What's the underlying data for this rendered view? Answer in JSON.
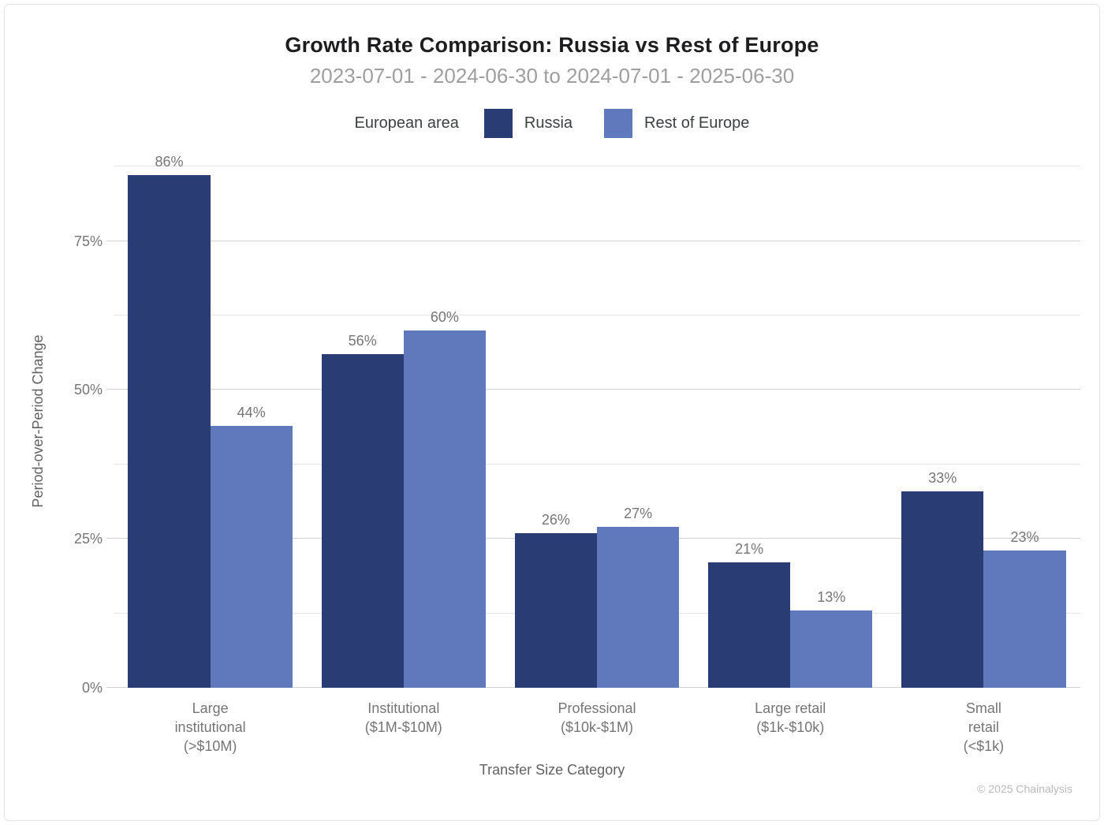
{
  "chart_data": {
    "type": "bar",
    "title": "Growth Rate Comparison: Russia vs Rest of Europe",
    "subtitle": "2023-07-01 - 2024-06-30 to 2024-07-01 - 2025-06-30",
    "legend_title": "European area",
    "legend_position": "top-center",
    "xlabel": "Transfer Size Category",
    "ylabel": "Period-over-Period Change",
    "categories": [
      {
        "label": "Large institutional (>$10M)",
        "lines": [
          "Large",
          "institutional",
          "(>$10M)"
        ]
      },
      {
        "label": "Institutional ($1M-$10M)",
        "lines": [
          "Institutional",
          "($1M-$10M)"
        ]
      },
      {
        "label": "Professional ($10k-$1M)",
        "lines": [
          "Professional",
          "($10k-$1M)"
        ]
      },
      {
        "label": "Large retail ($1k-$10k)",
        "lines": [
          "Large retail",
          "($1k-$10k)"
        ]
      },
      {
        "label": "Small retail (<$1k)",
        "lines": [
          "Small",
          "retail",
          "(<$1k)"
        ]
      }
    ],
    "series": [
      {
        "name": "Russia",
        "color": "#293c74",
        "values": [
          86,
          56,
          26,
          21,
          33
        ]
      },
      {
        "name": "Rest of Europe",
        "color": "#6078bc",
        "values": [
          44,
          60,
          27,
          13,
          23
        ]
      }
    ],
    "value_suffix": "%",
    "y_ticks": [
      {
        "label": "0%",
        "value": 0
      },
      {
        "label": "25%",
        "value": 25
      },
      {
        "label": "50%",
        "value": 50
      },
      {
        "label": "75%",
        "value": 75
      }
    ],
    "gridlines": [
      0,
      12.5,
      25,
      37.5,
      50,
      62.5,
      75,
      87.5
    ],
    "major_gridlines": [
      0,
      25,
      50,
      75
    ],
    "ylim": [
      0,
      89.5
    ],
    "grid": true
  },
  "colors": {
    "russia": "#293c74",
    "rest_of_europe": "#6078bc",
    "title_text": "#1d1d1f",
    "subtitle_text": "#9e9e9e",
    "axis_text": "#757575",
    "gridline_major": "#d2d2d2",
    "gridline_minor": "#e4e4e4"
  },
  "footer": {
    "copyright": "© 2025 Chainalysis"
  }
}
